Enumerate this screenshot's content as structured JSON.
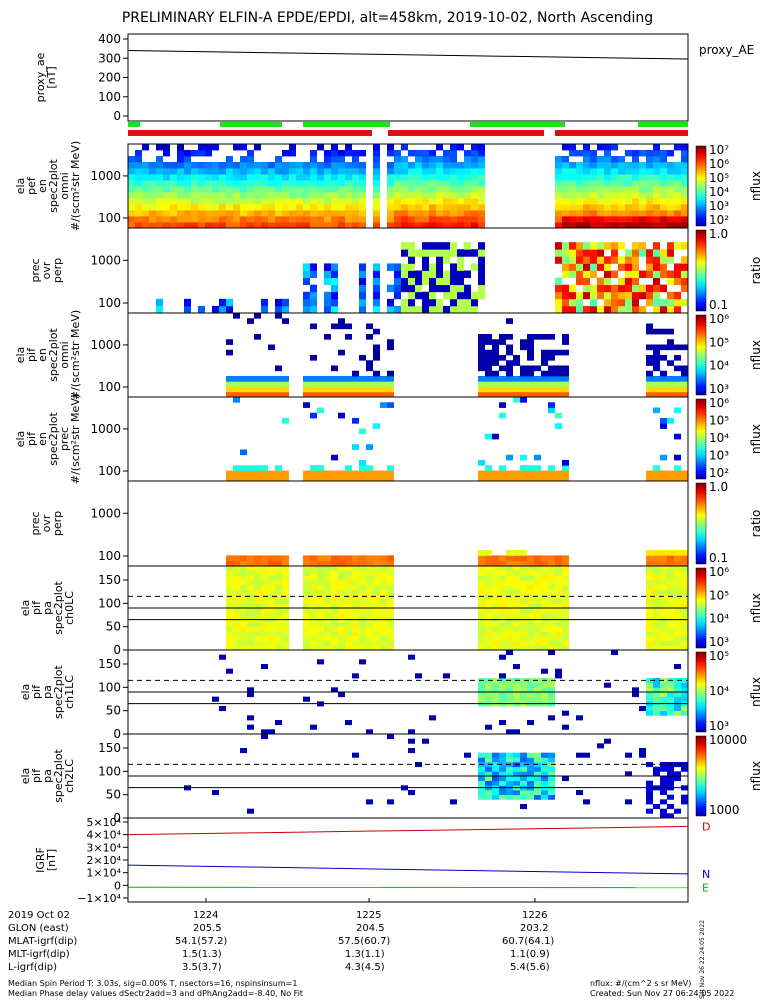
{
  "title": "PRELIMINARY ELFIN-A EPDE/EPDI, alt=458km, 2019-10-02, North Ascending",
  "colors": {
    "flag_green": "#22dd22",
    "flag_red": "#dd1111",
    "igrf_D": "#cc0000",
    "igrf_N": "#0000cc",
    "igrf_E": "#00bb00"
  },
  "chart_data": [
    {
      "type": "line",
      "name": "proxy_ae",
      "ylabel": "proxy_ae\n[nT]",
      "yticks": [
        "400",
        "300",
        "200",
        "100",
        "0"
      ],
      "ylim": [
        0,
        400
      ],
      "legend": "proxy_AE",
      "series": [
        {
          "values": [
            340,
            296
          ]
        }
      ]
    },
    {
      "type": "heatmap",
      "name": "ela pef en spec2plot omni",
      "ylabel": "ela\npef\nen\nspec2plot\nomni\n#/(scm²str MeV)",
      "yticks": [
        "1000",
        "100"
      ],
      "scale": "log",
      "colorbar": {
        "label": "nflux",
        "ticks": [
          "10⁷",
          "10⁶",
          "10⁵",
          "10⁴",
          "10³",
          "10²"
        ]
      }
    },
    {
      "type": "heatmap",
      "name": "prec ovr perp",
      "ylabel": "prec\novr\nperp",
      "yticks": [
        "1000",
        "100"
      ],
      "scale": "log",
      "colorbar": {
        "label": "ratio",
        "ticks": [
          "1.0",
          "0.1"
        ]
      }
    },
    {
      "type": "heatmap",
      "name": "ela pif en spec2plot omni",
      "ylabel": "ela\npif\nen\nspec2plot\nomni\n#/(scm²str MeV)",
      "yticks": [
        "1000",
        "100"
      ],
      "scale": "log",
      "colorbar": {
        "label": "nflux",
        "ticks": [
          "10⁶",
          "10⁵",
          "10⁴",
          "10³"
        ]
      }
    },
    {
      "type": "heatmap",
      "name": "ela pif en spec2plot prec",
      "ylabel": "ela\npif\nen\nspec2plot\nprec\n#/(scm²str MeV)",
      "yticks": [
        "1000",
        "100"
      ],
      "scale": "log",
      "colorbar": {
        "label": "nflux",
        "ticks": [
          "10⁶",
          "10⁵",
          "10⁴",
          "10³",
          "10²"
        ]
      }
    },
    {
      "type": "heatmap",
      "name": "prec ovr perp (ion)",
      "ylabel": "prec\novr\nperp",
      "yticks": [
        "1000",
        "100"
      ],
      "scale": "log",
      "colorbar": {
        "label": "ratio",
        "ticks": [
          "1.0",
          "0.1"
        ]
      }
    },
    {
      "type": "heatmap",
      "name": "ela pif pa spec2plot ch0LC",
      "ylabel": "ela\npif\npa\nspec2plot\nch0LC",
      "yticks": [
        "150",
        "100",
        "50",
        "0"
      ],
      "ylim": [
        0,
        180
      ],
      "colorbar": {
        "label": "nflux",
        "ticks": [
          "10⁶",
          "10⁵",
          "10⁴",
          "10³"
        ]
      }
    },
    {
      "type": "heatmap",
      "name": "ela pif pa spec2plot ch1LC",
      "ylabel": "ela\npif\npa\nspec2plot\nch1LC",
      "yticks": [
        "150",
        "100",
        "50",
        "0"
      ],
      "ylim": [
        0,
        180
      ],
      "colorbar": {
        "label": "nflux",
        "ticks": [
          "10⁵",
          "10⁴",
          "10³"
        ]
      }
    },
    {
      "type": "heatmap",
      "name": "ela pif pa spec2plot ch2LC",
      "ylabel": "ela\npif\npa\nspec2plot\nch2LC",
      "yticks": [
        "150",
        "100",
        "50",
        "0"
      ],
      "ylim": [
        0,
        180
      ],
      "colorbar": {
        "label": "nflux",
        "ticks": [
          "10000",
          "1000"
        ]
      }
    },
    {
      "type": "line",
      "name": "IGRF",
      "ylabel": "IGRF\n[nT]",
      "yticks": [
        "5×10⁴",
        "4×10⁴",
        "3×10⁴",
        "2×10⁴",
        "1×10⁴",
        "0",
        "−1×10⁴"
      ],
      "ylim": [
        -10000,
        50000
      ],
      "series": [
        {
          "name": "D",
          "values": [
            40000,
            46500
          ]
        },
        {
          "name": "N",
          "values": [
            16000,
            9000
          ]
        },
        {
          "name": "E",
          "values": [
            -1500,
            -1800
          ]
        }
      ]
    }
  ],
  "xaxis": {
    "row_labels": [
      "2019 Oct 02",
      "GLON (east)",
      "MLAT-igrf(dip)",
      "MLT-igrf(dip)",
      "L-igrf(dip)"
    ],
    "columns": [
      {
        "time": "1224",
        "glon": "205.5",
        "mlat": "54.1(57.2)",
        "mlt": "1.5(1.3)",
        "l": "3.5(3.7)"
      },
      {
        "time": "1225",
        "glon": "204.5",
        "mlat": "57.5(60.7)",
        "mlt": "1.3(1.1)",
        "l": "4.3(4.5)"
      },
      {
        "time": "1226",
        "glon": "203.2",
        "mlat": "60.7(64.1)",
        "mlt": "1.1(0.9)",
        "l": "5.4(5.6)"
      }
    ]
  },
  "footer": {
    "line1": "Median Spin Period T: 3.03s, sig=0.00% T, nsectors=16, nspinsinsum=1",
    "line2": "Median Phase delay values dSectr2add=3 and dPhAng2add=-8.40, No Fit",
    "units": "nflux: #/(cm^2 s sr MeV)",
    "created": "Created: Sun Nov 27 06:24:05 2022",
    "stamp": "Sat Nov 26 22:24:05 2022"
  }
}
